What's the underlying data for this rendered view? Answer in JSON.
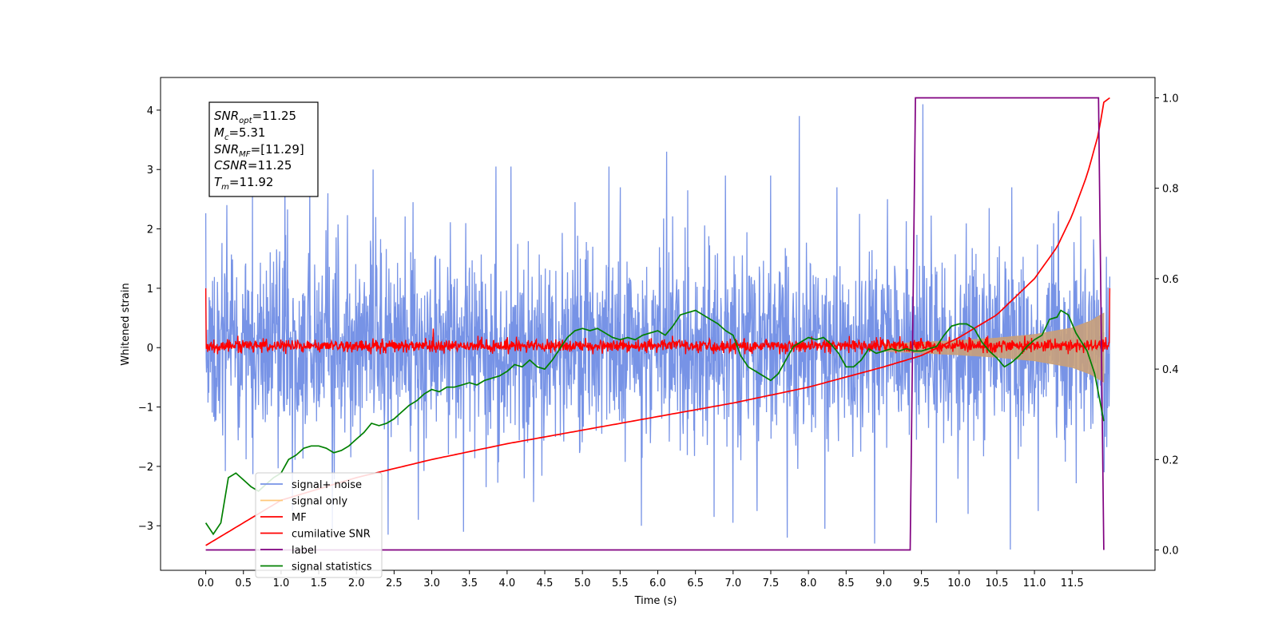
{
  "chart_data": {
    "type": "line",
    "title": "",
    "xlabel": "Time (s)",
    "ylabel": "Whitened strain",
    "xlim": [
      -0.6,
      12.6
    ],
    "ylim": [
      -3.75,
      4.55
    ],
    "y2lim": [
      -0.045,
      1.045
    ],
    "x_ticks": [
      "0.0",
      "0.5",
      "1.0",
      "1.5",
      "2.0",
      "2.5",
      "3.0",
      "3.5",
      "4.0",
      "4.5",
      "5.0",
      "5.5",
      "6.0",
      "6.5",
      "7.0",
      "7.5",
      "8.0",
      "8.5",
      "9.0",
      "9.5",
      "10.0",
      "10.5",
      "11.0",
      "11.5"
    ],
    "y_ticks": [
      "−3",
      "−2",
      "−1",
      "0",
      "1",
      "2",
      "3",
      "4"
    ],
    "y2_ticks": [
      "0.0",
      "0.2",
      "0.4",
      "0.6",
      "0.8",
      "1.0"
    ],
    "grid": false,
    "legend_position": "lower-left",
    "annotation": {
      "snr_opt": {
        "symbol": "SNR",
        "sub": "opt",
        "text": "=11.25"
      },
      "mc": {
        "symbol": "M",
        "sub": "c",
        "text": "=5.31"
      },
      "snr_mf": {
        "symbol": "SNR",
        "sub": "MF",
        "text": "=[11.29]"
      },
      "csnr": {
        "symbol": "CSNR",
        "text": "=11.25"
      },
      "tm": {
        "symbol": "T",
        "sub": "m",
        "text": "=11.92"
      }
    },
    "series": [
      {
        "name": "signal+ noise",
        "color": "#7793e6",
        "axis": "left",
        "description": "dense whitened noise between about -2 and 2 with spikes up to about 3.9 and down to -3.3",
        "spikes": [
          [
            0.28,
            2.4
          ],
          [
            0.62,
            2.6
          ],
          [
            1.05,
            2.9
          ],
          [
            1.38,
            2.85
          ],
          [
            1.62,
            2.6
          ],
          [
            2.22,
            3.0
          ],
          [
            2.75,
            2.45
          ],
          [
            3.85,
            3.05
          ],
          [
            4.05,
            3.05
          ],
          [
            4.9,
            2.45
          ],
          [
            5.35,
            3.05
          ],
          [
            5.5,
            2.7
          ],
          [
            6.12,
            3.3
          ],
          [
            6.4,
            2.65
          ],
          [
            6.9,
            2.9
          ],
          [
            7.5,
            2.9
          ],
          [
            7.88,
            3.9
          ],
          [
            8.38,
            2.7
          ],
          [
            9.05,
            2.5
          ],
          [
            9.52,
            4.1
          ],
          [
            10.4,
            2.35
          ],
          [
            10.7,
            2.7
          ],
          [
            11.32,
            2.3
          ],
          [
            1.15,
            -2.75
          ],
          [
            1.68,
            -3.05
          ],
          [
            2.42,
            -3.15
          ],
          [
            2.82,
            -2.9
          ],
          [
            3.42,
            -3.1
          ],
          [
            3.72,
            -2.35
          ],
          [
            4.35,
            -2.6
          ],
          [
            5.78,
            -3.0
          ],
          [
            6.75,
            -2.85
          ],
          [
            7.0,
            -2.95
          ],
          [
            7.32,
            -2.75
          ],
          [
            7.72,
            -3.2
          ],
          [
            8.22,
            -3.05
          ],
          [
            8.88,
            -3.3
          ],
          [
            9.7,
            -2.95
          ],
          [
            10.12,
            -2.8
          ],
          [
            10.68,
            -3.4
          ],
          [
            11.05,
            -2.75
          ]
        ]
      },
      {
        "name": "signal only",
        "color": "#ffc87a",
        "axis": "left",
        "envelope": [
          [
            9.0,
            0.06
          ],
          [
            9.5,
            0.09
          ],
          [
            10.0,
            0.12
          ],
          [
            10.5,
            0.16
          ],
          [
            11.0,
            0.22
          ],
          [
            11.5,
            0.33
          ],
          [
            11.75,
            0.45
          ],
          [
            11.88,
            0.55
          ],
          [
            11.92,
            0.58
          ]
        ]
      },
      {
        "name": "MF",
        "color": "#ff0000",
        "axis": "left",
        "description": "matched filter output, narrow noise band around -0.05 to 0.15 with start spike to 1.0 at t=0 and end spike at t=12",
        "spikes": [
          [
            0.0,
            1.0
          ],
          [
            3.02,
            0.32
          ],
          [
            12.0,
            1.0
          ]
        ]
      },
      {
        "name": "cumilative SNR",
        "color": "#ff0000",
        "axis": "right",
        "points": [
          [
            0.0,
            0.01
          ],
          [
            1.0,
            0.11
          ],
          [
            2.0,
            0.16
          ],
          [
            3.0,
            0.2
          ],
          [
            4.0,
            0.235
          ],
          [
            5.0,
            0.265
          ],
          [
            6.0,
            0.295
          ],
          [
            7.0,
            0.325
          ],
          [
            8.0,
            0.36
          ],
          [
            9.0,
            0.405
          ],
          [
            9.5,
            0.43
          ],
          [
            10.0,
            0.47
          ],
          [
            10.5,
            0.52
          ],
          [
            11.0,
            0.6
          ],
          [
            11.3,
            0.67
          ],
          [
            11.5,
            0.74
          ],
          [
            11.7,
            0.83
          ],
          [
            11.85,
            0.92
          ],
          [
            11.92,
            0.99
          ],
          [
            12.0,
            1.0
          ]
        ]
      },
      {
        "name": "label",
        "color": "#800080",
        "axis": "right",
        "points": [
          [
            0.0,
            0.0
          ],
          [
            9.35,
            0.0
          ],
          [
            9.42,
            1.0
          ],
          [
            11.85,
            1.0
          ],
          [
            11.92,
            0.0
          ]
        ]
      },
      {
        "name": "signal statistics",
        "color": "#008000",
        "axis": "right",
        "points": [
          [
            0.0,
            0.06
          ],
          [
            0.1,
            0.035
          ],
          [
            0.2,
            0.06
          ],
          [
            0.3,
            0.16
          ],
          [
            0.4,
            0.17
          ],
          [
            0.5,
            0.155
          ],
          [
            0.6,
            0.14
          ],
          [
            0.7,
            0.13
          ],
          [
            0.8,
            0.145
          ],
          [
            0.9,
            0.16
          ],
          [
            1.0,
            0.17
          ],
          [
            1.1,
            0.2
          ],
          [
            1.2,
            0.21
          ],
          [
            1.3,
            0.225
          ],
          [
            1.4,
            0.23
          ],
          [
            1.5,
            0.23
          ],
          [
            1.6,
            0.225
          ],
          [
            1.7,
            0.215
          ],
          [
            1.8,
            0.22
          ],
          [
            1.9,
            0.23
          ],
          [
            2.0,
            0.245
          ],
          [
            2.1,
            0.26
          ],
          [
            2.2,
            0.28
          ],
          [
            2.3,
            0.275
          ],
          [
            2.4,
            0.28
          ],
          [
            2.5,
            0.29
          ],
          [
            2.6,
            0.305
          ],
          [
            2.7,
            0.32
          ],
          [
            2.8,
            0.33
          ],
          [
            2.9,
            0.345
          ],
          [
            3.0,
            0.355
          ],
          [
            3.1,
            0.35
          ],
          [
            3.2,
            0.36
          ],
          [
            3.3,
            0.36
          ],
          [
            3.4,
            0.365
          ],
          [
            3.5,
            0.37
          ],
          [
            3.6,
            0.365
          ],
          [
            3.7,
            0.375
          ],
          [
            3.8,
            0.38
          ],
          [
            3.9,
            0.385
          ],
          [
            4.0,
            0.395
          ],
          [
            4.1,
            0.41
          ],
          [
            4.2,
            0.405
          ],
          [
            4.3,
            0.42
          ],
          [
            4.4,
            0.405
          ],
          [
            4.5,
            0.4
          ],
          [
            4.6,
            0.42
          ],
          [
            4.7,
            0.445
          ],
          [
            4.8,
            0.47
          ],
          [
            4.9,
            0.485
          ],
          [
            5.0,
            0.49
          ],
          [
            5.1,
            0.485
          ],
          [
            5.2,
            0.49
          ],
          [
            5.3,
            0.48
          ],
          [
            5.4,
            0.47
          ],
          [
            5.5,
            0.465
          ],
          [
            5.6,
            0.47
          ],
          [
            5.7,
            0.465
          ],
          [
            5.8,
            0.475
          ],
          [
            5.9,
            0.48
          ],
          [
            6.0,
            0.485
          ],
          [
            6.1,
            0.475
          ],
          [
            6.2,
            0.495
          ],
          [
            6.3,
            0.52
          ],
          [
            6.4,
            0.525
          ],
          [
            6.5,
            0.53
          ],
          [
            6.6,
            0.52
          ],
          [
            6.7,
            0.51
          ],
          [
            6.8,
            0.5
          ],
          [
            6.9,
            0.485
          ],
          [
            7.0,
            0.475
          ],
          [
            7.1,
            0.43
          ],
          [
            7.2,
            0.405
          ],
          [
            7.3,
            0.395
          ],
          [
            7.4,
            0.385
          ],
          [
            7.5,
            0.375
          ],
          [
            7.6,
            0.39
          ],
          [
            7.7,
            0.42
          ],
          [
            7.8,
            0.45
          ],
          [
            7.9,
            0.46
          ],
          [
            8.0,
            0.47
          ],
          [
            8.1,
            0.465
          ],
          [
            8.2,
            0.47
          ],
          [
            8.3,
            0.455
          ],
          [
            8.4,
            0.435
          ],
          [
            8.5,
            0.405
          ],
          [
            8.6,
            0.405
          ],
          [
            8.7,
            0.42
          ],
          [
            8.8,
            0.445
          ],
          [
            8.9,
            0.435
          ],
          [
            9.0,
            0.44
          ],
          [
            9.1,
            0.445
          ],
          [
            9.2,
            0.44
          ],
          [
            9.3,
            0.445
          ],
          [
            9.4,
            0.44
          ],
          [
            9.5,
            0.44
          ],
          [
            9.6,
            0.445
          ],
          [
            9.7,
            0.45
          ],
          [
            9.8,
            0.475
          ],
          [
            9.9,
            0.495
          ],
          [
            10.0,
            0.5
          ],
          [
            10.1,
            0.5
          ],
          [
            10.2,
            0.49
          ],
          [
            10.3,
            0.46
          ],
          [
            10.4,
            0.44
          ],
          [
            10.5,
            0.425
          ],
          [
            10.6,
            0.405
          ],
          [
            10.7,
            0.415
          ],
          [
            10.8,
            0.43
          ],
          [
            10.9,
            0.45
          ],
          [
            11.0,
            0.465
          ],
          [
            11.1,
            0.475
          ],
          [
            11.2,
            0.51
          ],
          [
            11.3,
            0.515
          ],
          [
            11.35,
            0.53
          ],
          [
            11.45,
            0.52
          ],
          [
            11.55,
            0.48
          ],
          [
            11.7,
            0.44
          ],
          [
            11.8,
            0.39
          ],
          [
            11.92,
            0.285
          ]
        ]
      }
    ]
  }
}
